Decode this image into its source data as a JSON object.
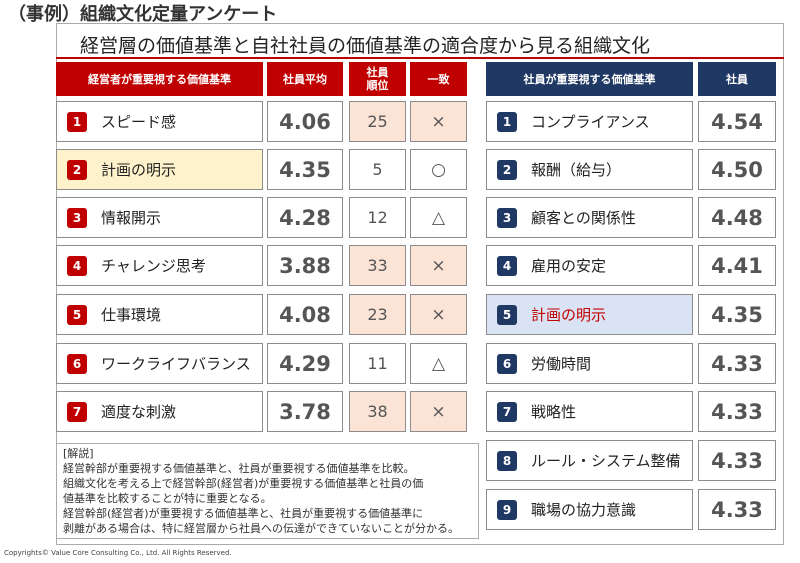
{
  "page_title": "（事例）組織文化定量アンケート",
  "subtitle": "経営層の価値基準と自社社員の価値基準の適合度から見る組織文化",
  "left_table": {
    "headers": {
      "criteria": "経営者が重要視する価値基準",
      "avg": "社員平均",
      "rank": "社員\n順位",
      "match": "一致"
    },
    "rows": [
      {
        "num": "1",
        "label": "スピード感",
        "avg": "4.06",
        "rank": "25",
        "match": "×"
      },
      {
        "num": "2",
        "label": "計画の明示",
        "avg": "4.35",
        "rank": "5",
        "match": "○"
      },
      {
        "num": "3",
        "label": "情報開示",
        "avg": "4.28",
        "rank": "12",
        "match": "△"
      },
      {
        "num": "4",
        "label": "チャレンジ思考",
        "avg": "3.88",
        "rank": "33",
        "match": "×"
      },
      {
        "num": "5",
        "label": "仕事環境",
        "avg": "4.08",
        "rank": "23",
        "match": "×"
      },
      {
        "num": "6",
        "label": "ワークライフバランス",
        "avg": "4.29",
        "rank": "11",
        "match": "△"
      },
      {
        "num": "7",
        "label": "適度な刺激",
        "avg": "3.78",
        "rank": "38",
        "match": "×"
      }
    ]
  },
  "right_table": {
    "headers": {
      "criteria": "社員が重要視する価値基準",
      "score": "社員"
    },
    "rows": [
      {
        "num": "1",
        "label": "コンプライアンス",
        "score": "4.54"
      },
      {
        "num": "2",
        "label": "報酬（給与）",
        "score": "4.50"
      },
      {
        "num": "3",
        "label": "顧客との関係性",
        "score": "4.48"
      },
      {
        "num": "4",
        "label": "雇用の安定",
        "score": "4.41"
      },
      {
        "num": "5",
        "label": "計画の明示",
        "score": "4.35"
      },
      {
        "num": "6",
        "label": "労働時間",
        "score": "4.33"
      },
      {
        "num": "7",
        "label": "戦略性",
        "score": "4.33"
      },
      {
        "num": "8",
        "label": "ルール・システム整備",
        "score": "4.33"
      },
      {
        "num": "9",
        "label": "職場の協力意識",
        "score": "4.33"
      }
    ]
  },
  "note": {
    "lines": [
      "[解説]",
      "経営幹部が重要視する価値基準と、社員が重要視する価値基準を比較。",
      "組織文化を考える上で経営幹部(経営者)が重要視する価値基準と社員の価",
      "値基準を比較することが特に重要となる。",
      "経営幹部(経営者)が重要視する価値基準と、社員が重要視する価値基準に",
      "剥離がある場合は、特に経営層から社員への伝達ができていないことが分かる。"
    ]
  },
  "copyright": "Copyrights© Value Core Consulting Co., Ltd.  All Rights Reserved.",
  "colors": {
    "accent_red": "#c00000",
    "accent_navy": "#1f3864",
    "mismatch_fill": "#fbe3d6",
    "match_fill": "#fdf2cc",
    "highlight_blue": "#dae3f3"
  }
}
